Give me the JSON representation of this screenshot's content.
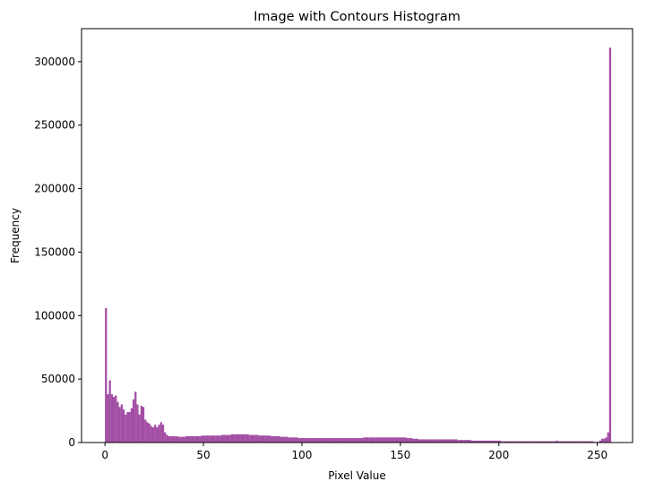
{
  "chart_data": {
    "type": "bar",
    "title": "Image with Contours Histogram",
    "xlabel": "Pixel Value",
    "ylabel": "Frequency",
    "xlim": [
      -11.9,
      267.9
    ],
    "ylim": [
      0,
      326000
    ],
    "xticks": [
      0,
      50,
      100,
      150,
      200,
      250
    ],
    "yticks": [
      0,
      50000,
      100000,
      150000,
      200000,
      250000,
      300000
    ],
    "bar_color": "#a24da4",
    "bin_width": 1,
    "series": [
      {
        "bins_start": 0,
        "values": [
          106000,
          38000,
          49000,
          38000,
          36000,
          37000,
          32000,
          28000,
          30000,
          26000,
          22000,
          24000,
          24000,
          27000,
          34000,
          40000,
          30000,
          22000,
          29000,
          28000,
          18000,
          16000,
          15000,
          13000,
          12000,
          14000,
          12000,
          14000,
          16000,
          14000,
          8000,
          6000,
          5000,
          5000,
          5000,
          5000,
          5000,
          4500,
          4500,
          4500,
          4500,
          5000,
          5000,
          5000,
          5000,
          5000,
          5000,
          5000,
          5000,
          5500,
          5500,
          5500,
          5500,
          5500,
          5500,
          5500,
          5500,
          5500,
          5500,
          6000,
          6000,
          6000,
          6000,
          6000,
          6500,
          6500,
          6500,
          6500,
          6500,
          6500,
          6500,
          6500,
          6500,
          6000,
          6000,
          6000,
          6000,
          6000,
          5500,
          5500,
          5500,
          5500,
          5500,
          5500,
          5000,
          5000,
          5000,
          5000,
          5000,
          4500,
          4500,
          4500,
          4500,
          4000,
          4000,
          4000,
          4000,
          4000,
          3500,
          3500,
          3500,
          3500,
          3500,
          3500,
          3500,
          3500,
          3500,
          3500,
          3500,
          3500,
          3500,
          3500,
          3500,
          3500,
          3500,
          3500,
          3500,
          3500,
          3500,
          3500,
          3500,
          3500,
          3500,
          3500,
          3500,
          3500,
          3500,
          3500,
          3500,
          3500,
          3500,
          4000,
          4000,
          4000,
          4000,
          4000,
          4000,
          4000,
          4000,
          4000,
          4000,
          4000,
          4000,
          4000,
          4000,
          4000,
          4000,
          4000,
          4000,
          4000,
          4000,
          4000,
          4000,
          3500,
          3500,
          3500,
          3000,
          3000,
          3000,
          2500,
          2500,
          2500,
          2500,
          2500,
          2500,
          2500,
          2500,
          2500,
          2500,
          2500,
          2500,
          2500,
          2500,
          2500,
          2500,
          2500,
          2500,
          2500,
          2500,
          2000,
          2000,
          2000,
          2000,
          2000,
          2000,
          2000,
          1500,
          1500,
          1500,
          1500,
          1500,
          1500,
          1500,
          1500,
          1500,
          1500,
          1500,
          1500,
          1500,
          1500,
          1500,
          1000,
          1000,
          1000,
          1000,
          1000,
          1000,
          1000,
          1000,
          1000,
          1000,
          1000,
          1000,
          1000,
          1000,
          1000,
          1000,
          1000,
          1000,
          1000,
          1000,
          1000,
          1000,
          1000,
          1000,
          1000,
          1000,
          1000,
          1000,
          1500,
          1000,
          1000,
          1000,
          1000,
          1000,
          1000,
          1000,
          1000,
          1000,
          1000,
          1000,
          1000,
          1000,
          1000,
          1000,
          1000,
          1000,
          1000,
          500,
          500,
          500,
          1500,
          3000,
          3000,
          4000,
          8000,
          311000
        ]
      }
    ]
  }
}
